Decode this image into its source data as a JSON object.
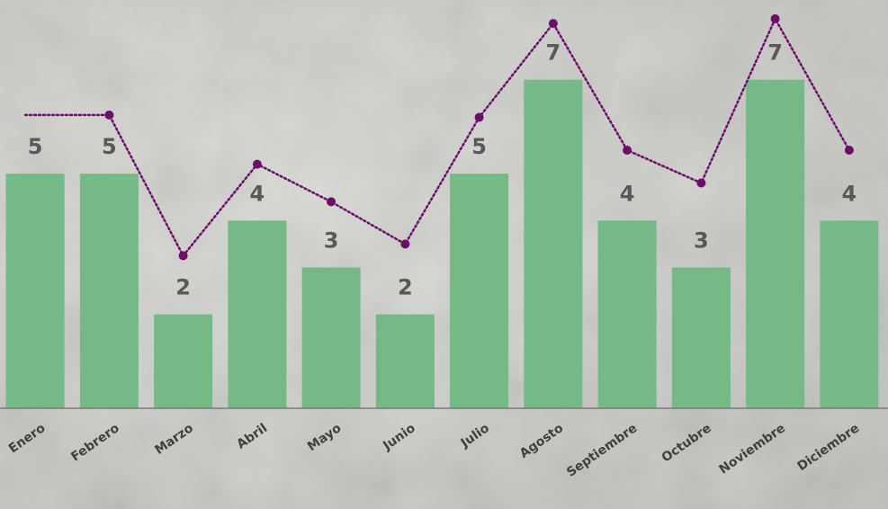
{
  "chart_data": {
    "type": "bar",
    "categories": [
      "Enero",
      "Febrero",
      "Marzo",
      "Abril",
      "Mayo",
      "Junio",
      "Julio",
      "Agosto",
      "Septiembre",
      "Octubre",
      "Noviembre",
      "Diciembre"
    ],
    "series": [
      {
        "type": "bar",
        "values": [
          5,
          5,
          2,
          4,
          3,
          2,
          5,
          7,
          4,
          3,
          7,
          4
        ],
        "color": "#75b987",
        "data_labels": true
      },
      {
        "type": "line",
        "values": [
          6.25,
          6.25,
          3.25,
          5.2,
          4.4,
          3.5,
          6.2,
          8.2,
          5.5,
          4.8,
          8.3,
          5.5
        ],
        "color": "#6b0f6b",
        "line_style": "dotted",
        "markers": true
      }
    ],
    "ylim": [
      0,
      8.7
    ],
    "grid": false,
    "legend": "none",
    "x_tick_rotation": -35,
    "background": "concrete-texture"
  }
}
